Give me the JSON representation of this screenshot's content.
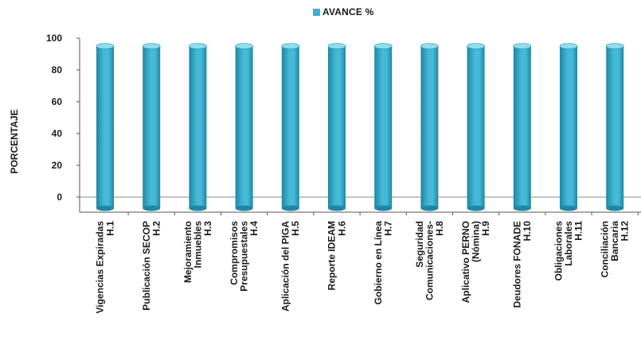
{
  "legend": {
    "series_label": "AVANCE %"
  },
  "colors": {
    "bar_side": "#1f86a6",
    "bar_face": "#45bad6",
    "bar_top": "#8fdcee",
    "axis": "#555555"
  },
  "chart_data": {
    "type": "bar",
    "title": "",
    "xlabel": "",
    "ylabel": "PORCENTAJE",
    "ylim": [
      0,
      100
    ],
    "yticks": [
      0,
      20,
      40,
      60,
      80,
      100
    ],
    "grid": false,
    "legend_position": "top",
    "categories": [
      [
        "Vigencias Expiradas",
        "H.1"
      ],
      [
        "Publicación SECOP",
        "H.2"
      ],
      [
        "Mejoramiento",
        "Inmuebles",
        "H.3"
      ],
      [
        "Compromisos",
        "Presupuestales",
        "H.4"
      ],
      [
        "Aplicación del PIGA",
        "H.5"
      ],
      [
        "Reporte IDEAM",
        "H.6"
      ],
      [
        "Gobierno en Línea",
        "H.7"
      ],
      [
        "Seguridad",
        "Comunicaciones-",
        "H.8"
      ],
      [
        "Aplicativo PERNO",
        "(Nómina)",
        "H.9"
      ],
      [
        "Deudores FONADE",
        "H.10"
      ],
      [
        "Obligaciones",
        "Laborales",
        "H.11"
      ],
      [
        "Conciliación",
        "Bancaria",
        "H.12"
      ]
    ],
    "series": [
      {
        "name": "AVANCE %",
        "values": [
          95,
          95,
          95,
          95,
          95,
          95,
          95,
          95,
          95,
          95,
          95,
          95
        ]
      }
    ]
  }
}
